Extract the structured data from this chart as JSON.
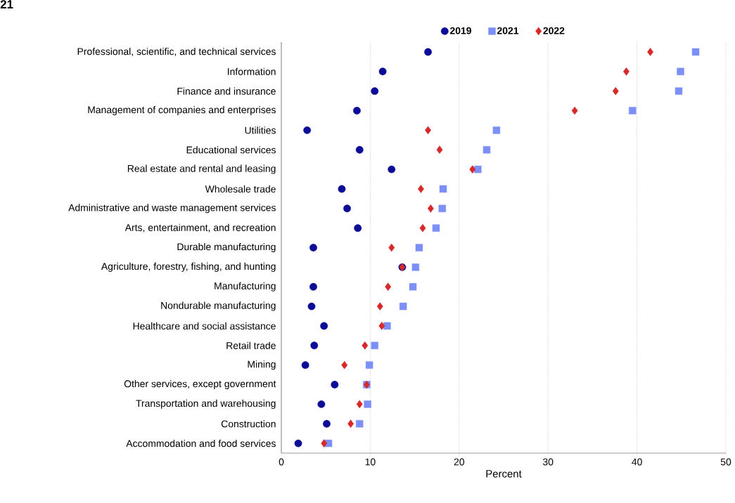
{
  "chart_data": {
    "type": "scatter",
    "title": "21",
    "xlabel": "Percent",
    "categories": [
      "Professional, scientific, and technical services",
      "Information",
      "Finance and insurance",
      "Management of companies and enterprises",
      "Utilities",
      "Educational services",
      "Real estate and rental and leasing",
      "Wholesale trade",
      "Administrative and waste management services",
      "Arts, entertainment, and recreation",
      "Durable manufacturing",
      "Agriculture, forestry, fishing, and hunting",
      "Manufacturing",
      "Nondurable manufacturing",
      "Healthcare and social assistance",
      "Retail trade",
      "Mining",
      "Other services, except government",
      "Transportation and warehousing",
      "Construction",
      "Accommodation and food services"
    ],
    "orientation": "horizontal",
    "series": [
      {
        "name": "2019",
        "color": "#0c0c96",
        "marker": "circle",
        "values": [
          16.5,
          11.4,
          10.5,
          8.5,
          2.9,
          8.8,
          12.4,
          6.8,
          7.4,
          8.6,
          3.6,
          13.6,
          3.6,
          3.4,
          4.8,
          3.7,
          2.7,
          6.0,
          4.5,
          5.1,
          1.9
        ]
      },
      {
        "name": "2021",
        "color": "#7b8ff7",
        "marker": "square",
        "values": [
          46.6,
          44.9,
          44.7,
          39.5,
          24.2,
          23.1,
          22.1,
          18.2,
          18.1,
          17.4,
          15.5,
          15.1,
          14.8,
          13.7,
          11.9,
          10.5,
          9.9,
          9.6,
          9.7,
          8.8,
          5.3
        ]
      },
      {
        "name": "2022",
        "color": "#d7282a",
        "marker": "diamond",
        "values": [
          41.5,
          38.8,
          37.6,
          33.0,
          16.5,
          17.8,
          21.5,
          15.7,
          16.8,
          15.9,
          12.4,
          13.6,
          12.0,
          11.1,
          11.3,
          9.4,
          7.1,
          9.6,
          8.8,
          7.8,
          4.8
        ]
      }
    ],
    "xlim": [
      0,
      50
    ],
    "xticks": [
      0,
      10,
      20,
      30,
      40,
      50
    ],
    "grid": "x",
    "legend": "top"
  }
}
